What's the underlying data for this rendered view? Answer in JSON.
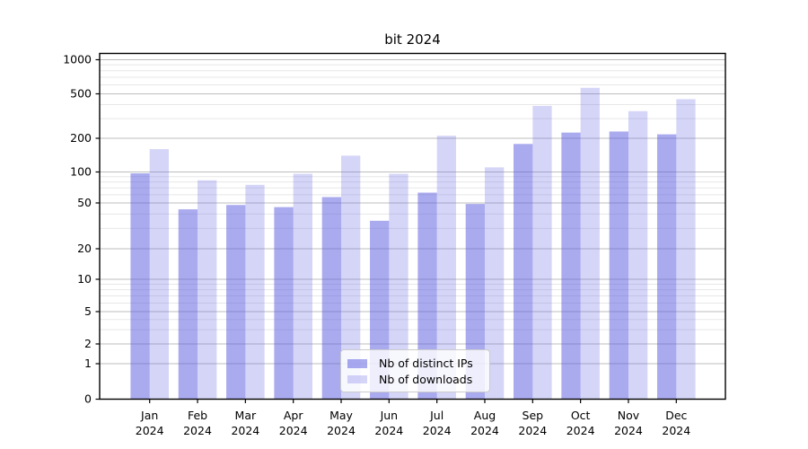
{
  "chart_data": {
    "type": "bar",
    "title": "bit 2024",
    "categories": [
      "Jan",
      "Feb",
      "Mar",
      "Apr",
      "May",
      "Jun",
      "Jul",
      "Aug",
      "Sep",
      "Oct",
      "Nov",
      "Dec"
    ],
    "year": "2024",
    "series": [
      {
        "name": "Nb of distinct IPs",
        "color": "#aaaaef",
        "fill_rgba": "rgba(86,86,224,0.50)",
        "values": [
          97,
          44,
          48,
          46,
          57,
          35,
          63,
          49,
          178,
          225,
          230,
          217
        ]
      },
      {
        "name": "Nb of downloads",
        "color": "#d9d9f8",
        "fill_rgba": "rgba(101,101,230,0.27)",
        "values": [
          160,
          83,
          75,
          96,
          140,
          96,
          211,
          110,
          390,
          565,
          350,
          448
        ]
      }
    ],
    "yscale": "symlog",
    "yticks": [
      0,
      1,
      2,
      5,
      10,
      20,
      50,
      100,
      200,
      500,
      1000
    ],
    "ytick_labels": [
      "0",
      "1",
      "2",
      "5",
      "10",
      "20",
      "50",
      "100",
      "200",
      "500",
      "1000"
    ],
    "ylim": [
      0,
      1000
    ],
    "grid": "on",
    "grid_major_color": "#bdbdbd",
    "grid_minor_color": "#e7e7e7",
    "legend_position": "lower-center"
  }
}
